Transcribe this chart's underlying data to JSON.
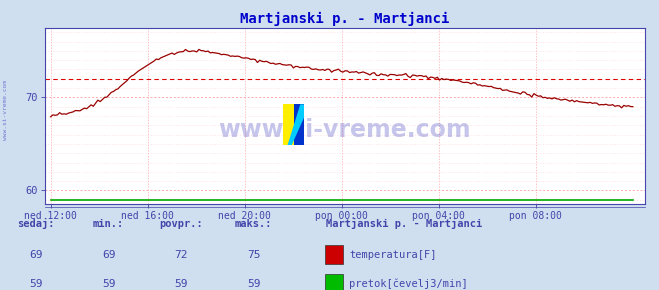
{
  "title": "Martjanski p. - Martjanci",
  "bg_color": "#d0dff0",
  "plot_bg_color": "#ffffff",
  "x_tick_labels": [
    "ned 12:00",
    "ned 16:00",
    "ned 20:00",
    "pon 00:00",
    "pon 04:00",
    "pon 08:00"
  ],
  "x_tick_positions": [
    0.0,
    0.1667,
    0.3333,
    0.5,
    0.6667,
    0.8333
  ],
  "y_ticks": [
    60,
    70
  ],
  "ylim": [
    58.5,
    77.5
  ],
  "xlim": [
    -0.01,
    1.02
  ],
  "avg_line_y": 72,
  "avg_line_color": "#dd0000",
  "temp_line_color": "#990000",
  "flow_line_color": "#00aa00",
  "grid_color_major": "#ffaaaa",
  "grid_color_minor": "#ffd0d0",
  "title_color": "#0000cc",
  "axis_color": "#4444aa",
  "tick_color": "#4444aa",
  "label_color": "#4444aa",
  "watermark": "www.si-vreme.com",
  "watermark_color": "#3333bb",
  "legend_title": "Martjanski p. - Martjanci",
  "legend_items": [
    {
      "label": "temperatura[F]",
      "color": "#cc0000"
    },
    {
      "label": "pretok[čevelj3/min]",
      "color": "#00bb00"
    }
  ],
  "stats_labels": [
    "sedaj:",
    "min.:",
    "povpr.:",
    "maks.:"
  ],
  "stats_temp": [
    69,
    69,
    72,
    75
  ],
  "stats_flow": [
    59,
    59,
    59,
    59
  ],
  "key_t": [
    0,
    0.03,
    0.06,
    0.09,
    0.12,
    0.15,
    0.18,
    0.21,
    0.24,
    0.27,
    0.3,
    0.35,
    0.4,
    0.45,
    0.5,
    0.55,
    0.6,
    0.65,
    0.7,
    0.75,
    0.8,
    0.85,
    0.9,
    0.95,
    1.0
  ],
  "key_v": [
    68.0,
    68.3,
    68.8,
    69.8,
    71.2,
    72.8,
    74.0,
    74.8,
    75.0,
    74.9,
    74.6,
    74.0,
    73.5,
    73.1,
    72.8,
    72.6,
    72.4,
    72.2,
    71.8,
    71.2,
    70.5,
    70.0,
    69.6,
    69.2,
    69.0
  ]
}
